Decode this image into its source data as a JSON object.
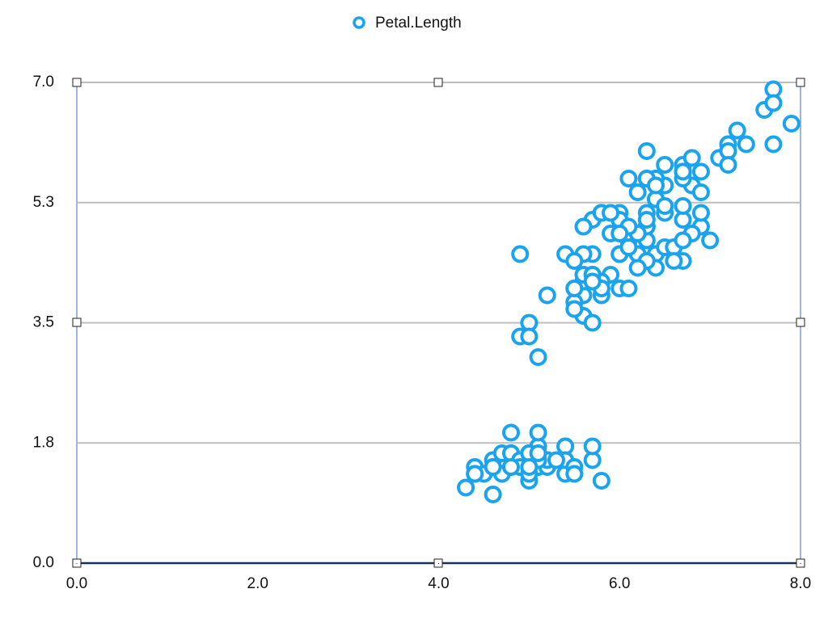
{
  "chart_data": {
    "type": "scatter",
    "x": [
      5.1,
      4.9,
      4.7,
      4.6,
      5.0,
      5.4,
      4.6,
      5.0,
      4.4,
      4.9,
      5.4,
      4.8,
      4.8,
      4.3,
      5.8,
      5.7,
      5.4,
      5.1,
      5.7,
      5.1,
      5.4,
      5.1,
      4.6,
      5.1,
      4.8,
      5.0,
      5.0,
      5.2,
      5.2,
      4.7,
      4.8,
      5.4,
      5.2,
      5.5,
      4.9,
      5.0,
      5.5,
      4.9,
      4.4,
      5.1,
      5.0,
      4.5,
      4.4,
      5.0,
      5.1,
      4.8,
      5.1,
      4.6,
      5.3,
      5.0,
      7.0,
      6.4,
      6.9,
      5.5,
      6.5,
      5.7,
      6.3,
      4.9,
      6.6,
      5.2,
      5.0,
      5.9,
      6.0,
      6.1,
      5.6,
      6.7,
      5.6,
      5.8,
      6.2,
      5.6,
      5.9,
      6.1,
      6.3,
      6.1,
      6.4,
      6.6,
      6.8,
      6.7,
      6.0,
      5.7,
      5.5,
      5.5,
      5.8,
      6.0,
      5.4,
      6.0,
      6.7,
      6.3,
      5.6,
      5.5,
      5.5,
      6.1,
      5.8,
      5.0,
      5.6,
      5.7,
      5.7,
      6.2,
      5.1,
      5.7,
      6.3,
      5.8,
      7.1,
      6.3,
      6.5,
      7.6,
      4.9,
      7.3,
      6.7,
      7.2,
      6.5,
      6.4,
      6.8,
      5.7,
      5.8,
      6.4,
      6.5,
      7.7,
      7.7,
      6.0,
      6.9,
      5.6,
      7.7,
      6.3,
      6.7,
      7.2,
      6.2,
      6.1,
      6.4,
      7.2,
      7.4,
      7.9,
      6.4,
      6.3,
      6.1,
      7.7,
      6.3,
      6.4,
      6.0,
      6.9,
      6.7,
      6.9,
      5.8,
      6.8,
      6.7,
      6.7,
      6.3,
      6.5,
      6.2,
      5.9
    ],
    "series": [
      {
        "name": "Petal.Length",
        "color": "#1aa3ef",
        "values": [
          1.4,
          1.4,
          1.3,
          1.5,
          1.4,
          1.7,
          1.4,
          1.5,
          1.4,
          1.5,
          1.5,
          1.6,
          1.4,
          1.1,
          1.2,
          1.5,
          1.3,
          1.4,
          1.7,
          1.5,
          1.7,
          1.5,
          1.0,
          1.7,
          1.9,
          1.6,
          1.6,
          1.5,
          1.4,
          1.6,
          1.6,
          1.5,
          1.5,
          1.4,
          1.5,
          1.2,
          1.3,
          1.4,
          1.3,
          1.5,
          1.3,
          1.3,
          1.3,
          1.6,
          1.9,
          1.4,
          1.6,
          1.4,
          1.5,
          1.4,
          4.7,
          4.5,
          4.9,
          4.0,
          4.6,
          4.5,
          4.7,
          3.3,
          4.6,
          3.9,
          3.5,
          4.2,
          4.0,
          4.7,
          3.6,
          4.4,
          4.5,
          4.1,
          4.5,
          3.9,
          4.8,
          4.0,
          4.9,
          4.7,
          4.3,
          4.4,
          4.8,
          5.0,
          4.5,
          3.5,
          3.8,
          3.7,
          3.9,
          5.1,
          4.5,
          4.5,
          4.7,
          4.4,
          4.1,
          4.0,
          4.4,
          4.6,
          4.0,
          3.3,
          4.2,
          4.2,
          4.2,
          4.3,
          3.0,
          4.1,
          6.0,
          5.1,
          5.9,
          5.6,
          5.8,
          6.6,
          4.5,
          6.3,
          5.8,
          6.1,
          5.1,
          5.3,
          5.5,
          5.0,
          5.1,
          5.3,
          5.5,
          6.7,
          6.9,
          5.0,
          5.7,
          4.9,
          6.7,
          4.9,
          5.7,
          6.0,
          4.8,
          4.9,
          5.6,
          5.8,
          6.1,
          6.4,
          5.6,
          5.1,
          5.6,
          6.1,
          5.6,
          5.5,
          4.8,
          5.4,
          5.6,
          5.1,
          5.1,
          5.9,
          5.7,
          5.2,
          5.0,
          5.2,
          5.4,
          5.1
        ]
      }
    ],
    "xlim": [
      0,
      8
    ],
    "xticks": [
      {
        "value": 0,
        "label": "0.0"
      },
      {
        "value": 2,
        "label": "2.0"
      },
      {
        "value": 4,
        "label": "4.0"
      },
      {
        "value": 6,
        "label": "6.0"
      },
      {
        "value": 8,
        "label": "8.0"
      }
    ],
    "ylim": [
      0,
      7
    ],
    "yticks": [
      {
        "value": 0,
        "label": "0.0"
      },
      {
        "value": 1.75,
        "label": "1.8"
      },
      3.5,
      {
        "value": 5.25,
        "label": "5.3"
      },
      {
        "value": 7,
        "label": "7.0"
      }
    ],
    "grid": true,
    "legend": "top"
  }
}
